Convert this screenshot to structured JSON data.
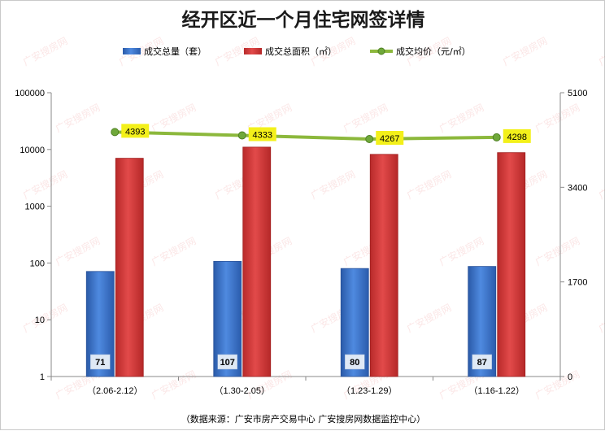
{
  "chart_data": {
    "type": "bar",
    "title": "经开区近一个月住宅网签详情",
    "categories": [
      "（2.06-2.12）",
      "（1.30-2.05）",
      "（1.23-1.29）",
      "（1.16-1.22）"
    ],
    "series": [
      {
        "name": "成交总量（套）",
        "kind": "bar",
        "axis": "left",
        "values": [
          71,
          107,
          80,
          87
        ],
        "labels": [
          "71",
          "107",
          "80",
          "87"
        ],
        "color": "#3a6fc8"
      },
      {
        "name": "成交总面积（㎡）",
        "kind": "bar",
        "axis": "left",
        "values": [
          7000,
          11000,
          8200,
          8800
        ],
        "color": "#d23b3b"
      },
      {
        "name": "成交均价（元/㎡）",
        "kind": "line",
        "axis": "right",
        "values": [
          4393,
          4333,
          4267,
          4298
        ],
        "labels": [
          "4393",
          "4333",
          "4267",
          "4298"
        ],
        "color": "#8cb83c"
      }
    ],
    "y_left": {
      "scale": "log",
      "ylim": [
        1,
        100000
      ],
      "ticks": [
        "1",
        "10",
        "100",
        "1000",
        "10000",
        "100000"
      ]
    },
    "y_right": {
      "scale": "linear",
      "ylim": [
        0,
        5100
      ],
      "ticks": [
        "0",
        "1700",
        "3400",
        "5100"
      ]
    },
    "legend_position": "top",
    "grid": false
  },
  "source_note": "（数据来源：广安市房产交易中心 广安搜房网数据监控中心）",
  "watermark_text": "广安搜房网"
}
